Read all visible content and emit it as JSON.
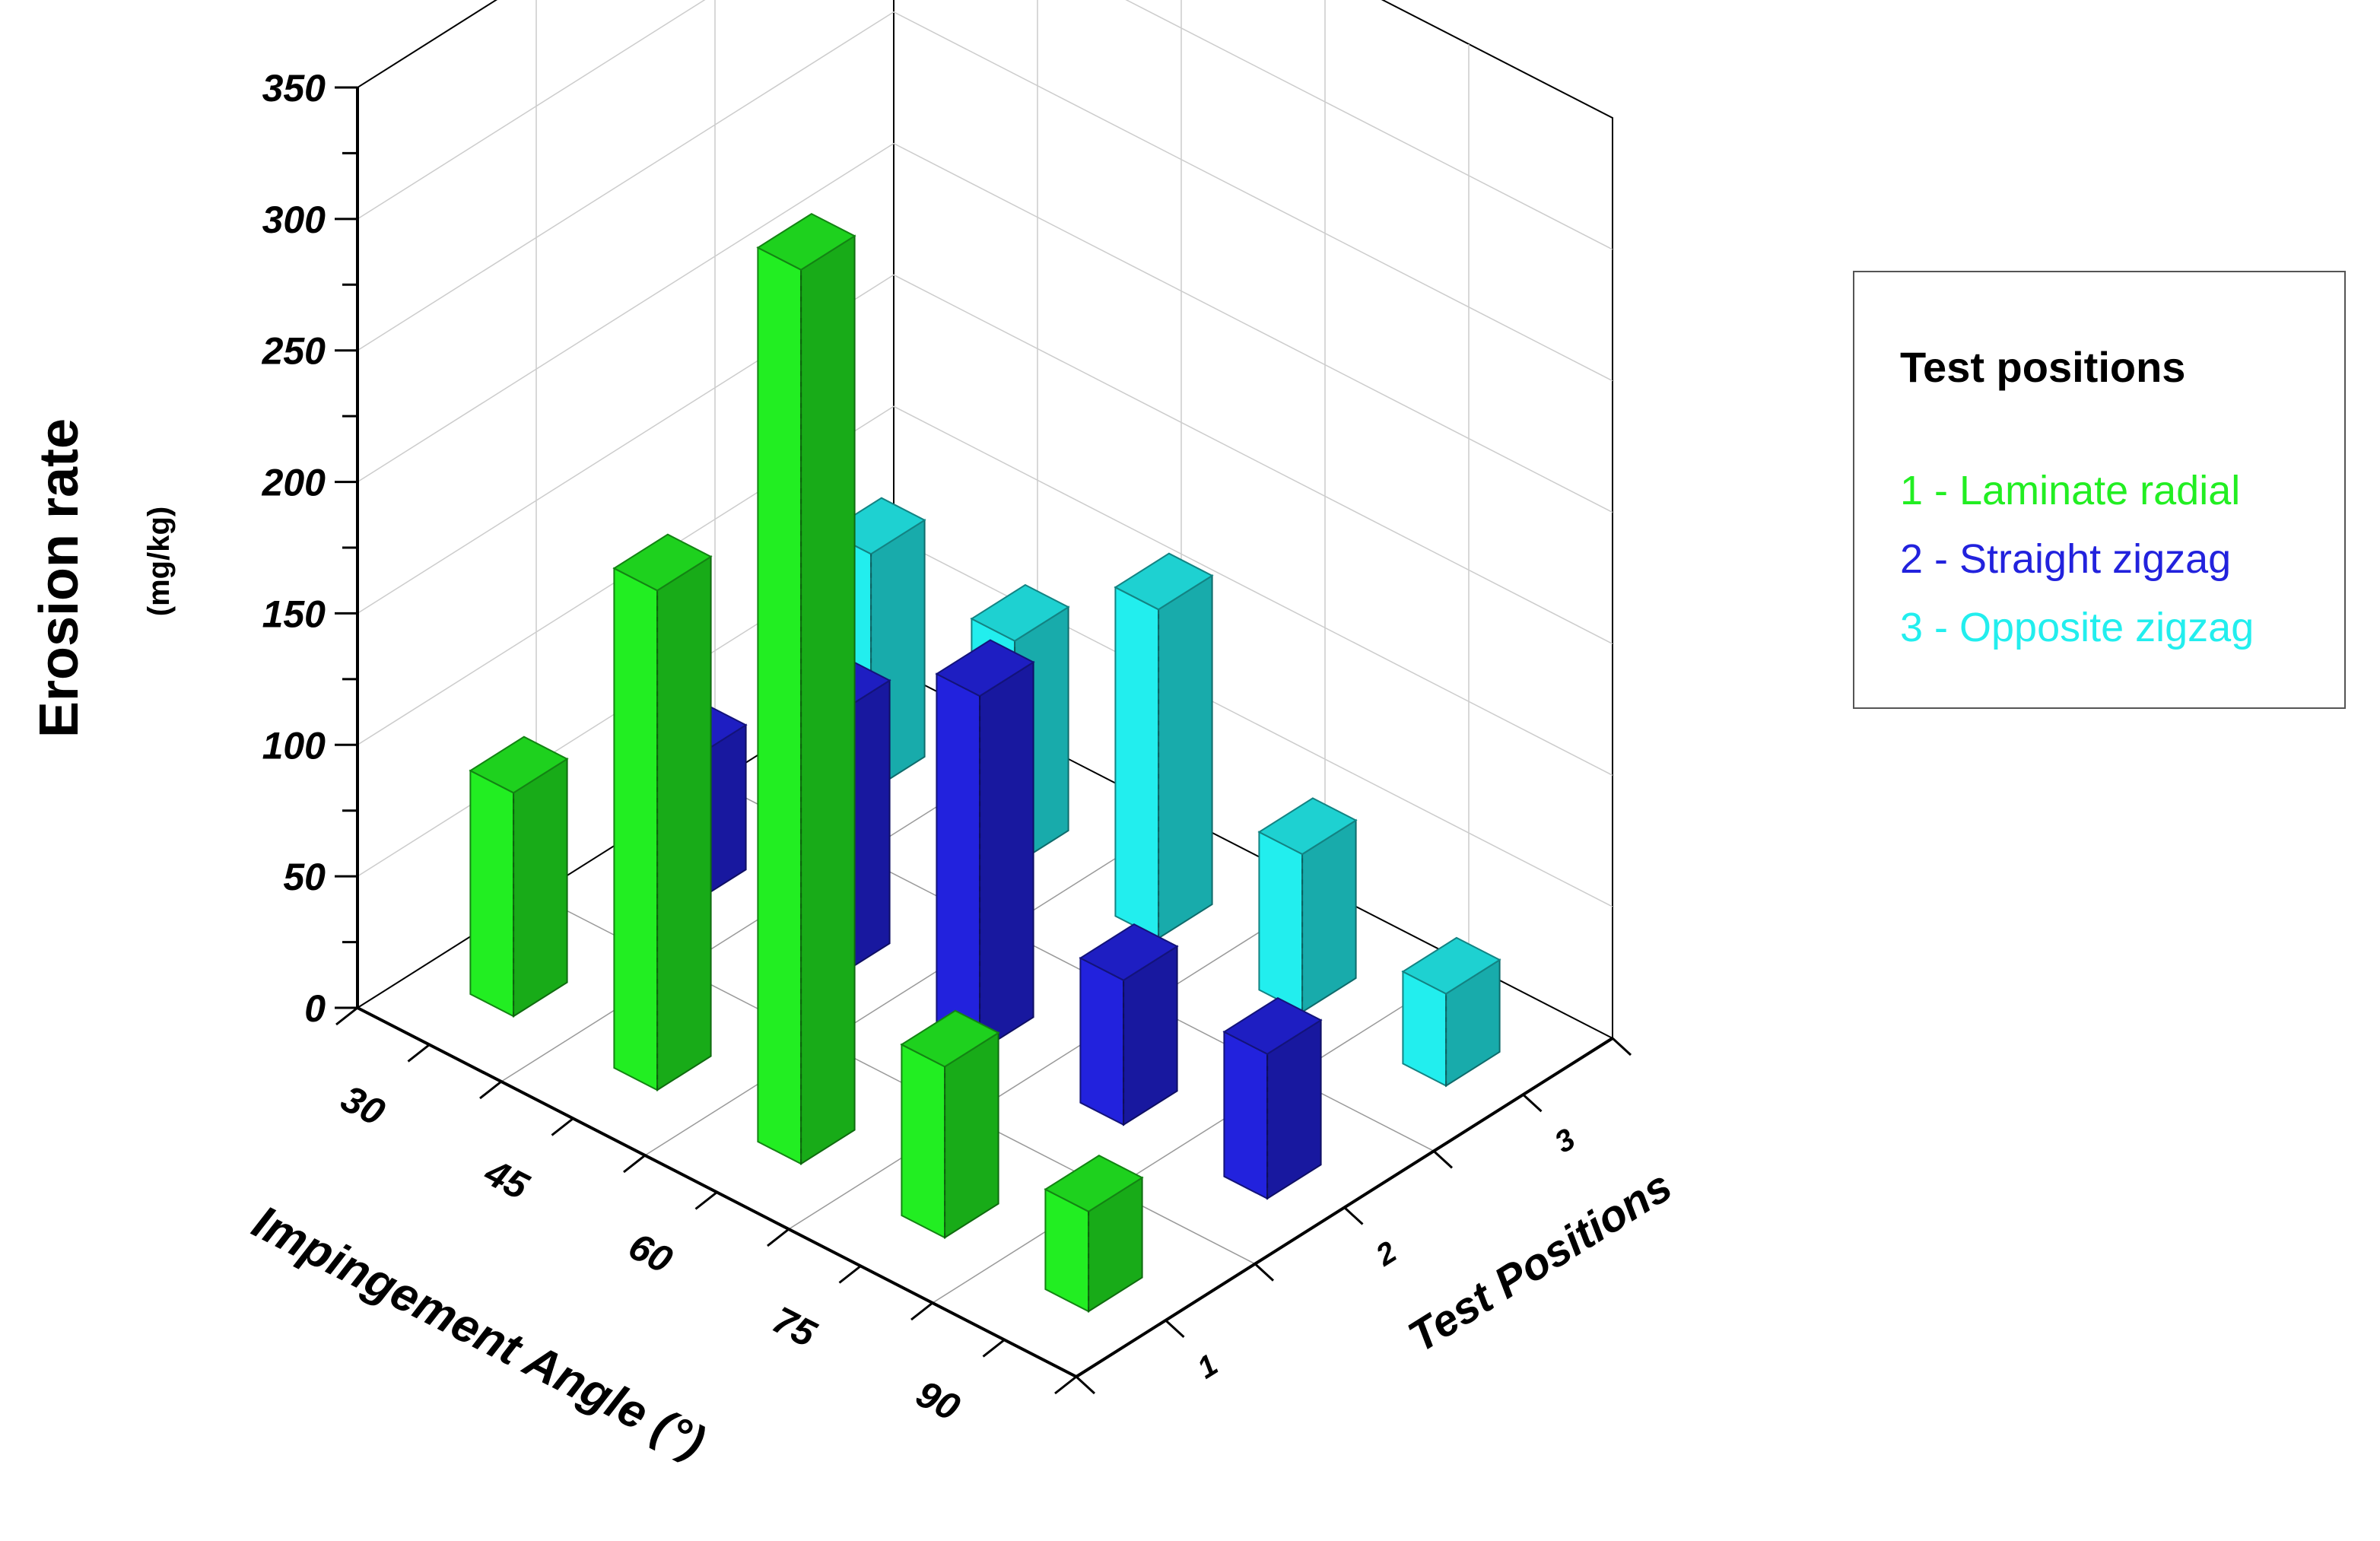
{
  "chart_data": {
    "type": "bar3d",
    "zlabel": "Erosion rate",
    "zunit": "(mg/kg)",
    "xlabel": "Impingement Angle (°)",
    "ylabel": "Test Positions",
    "zlim": [
      0,
      350
    ],
    "z_ticks": [
      "0",
      "50",
      "100",
      "150",
      "200",
      "250",
      "300",
      "350"
    ],
    "categories": [
      "30",
      "45",
      "60",
      "75",
      "90"
    ],
    "positions": [
      "1",
      "2",
      "3"
    ],
    "grid": true,
    "legend": {
      "position": "right",
      "title": "Test positions",
      "entries": [
        "1 - Laminate radial",
        "2 - Straight zigzag",
        "3 - Opposite zigzag"
      ]
    },
    "series": [
      {
        "name": "1 - Laminate radial",
        "position": "1",
        "color": "#22ee22",
        "values": [
          85,
          190,
          340,
          65,
          38
        ]
      },
      {
        "name": "2 - Straight zigzag",
        "position": "2",
        "color": "#2222dd",
        "values": [
          55,
          100,
          135,
          55,
          55
        ]
      },
      {
        "name": "3 - Opposite zigzag",
        "position": "3",
        "color": "#22eeee",
        "values": [
          90,
          85,
          125,
          60,
          35
        ]
      }
    ]
  }
}
